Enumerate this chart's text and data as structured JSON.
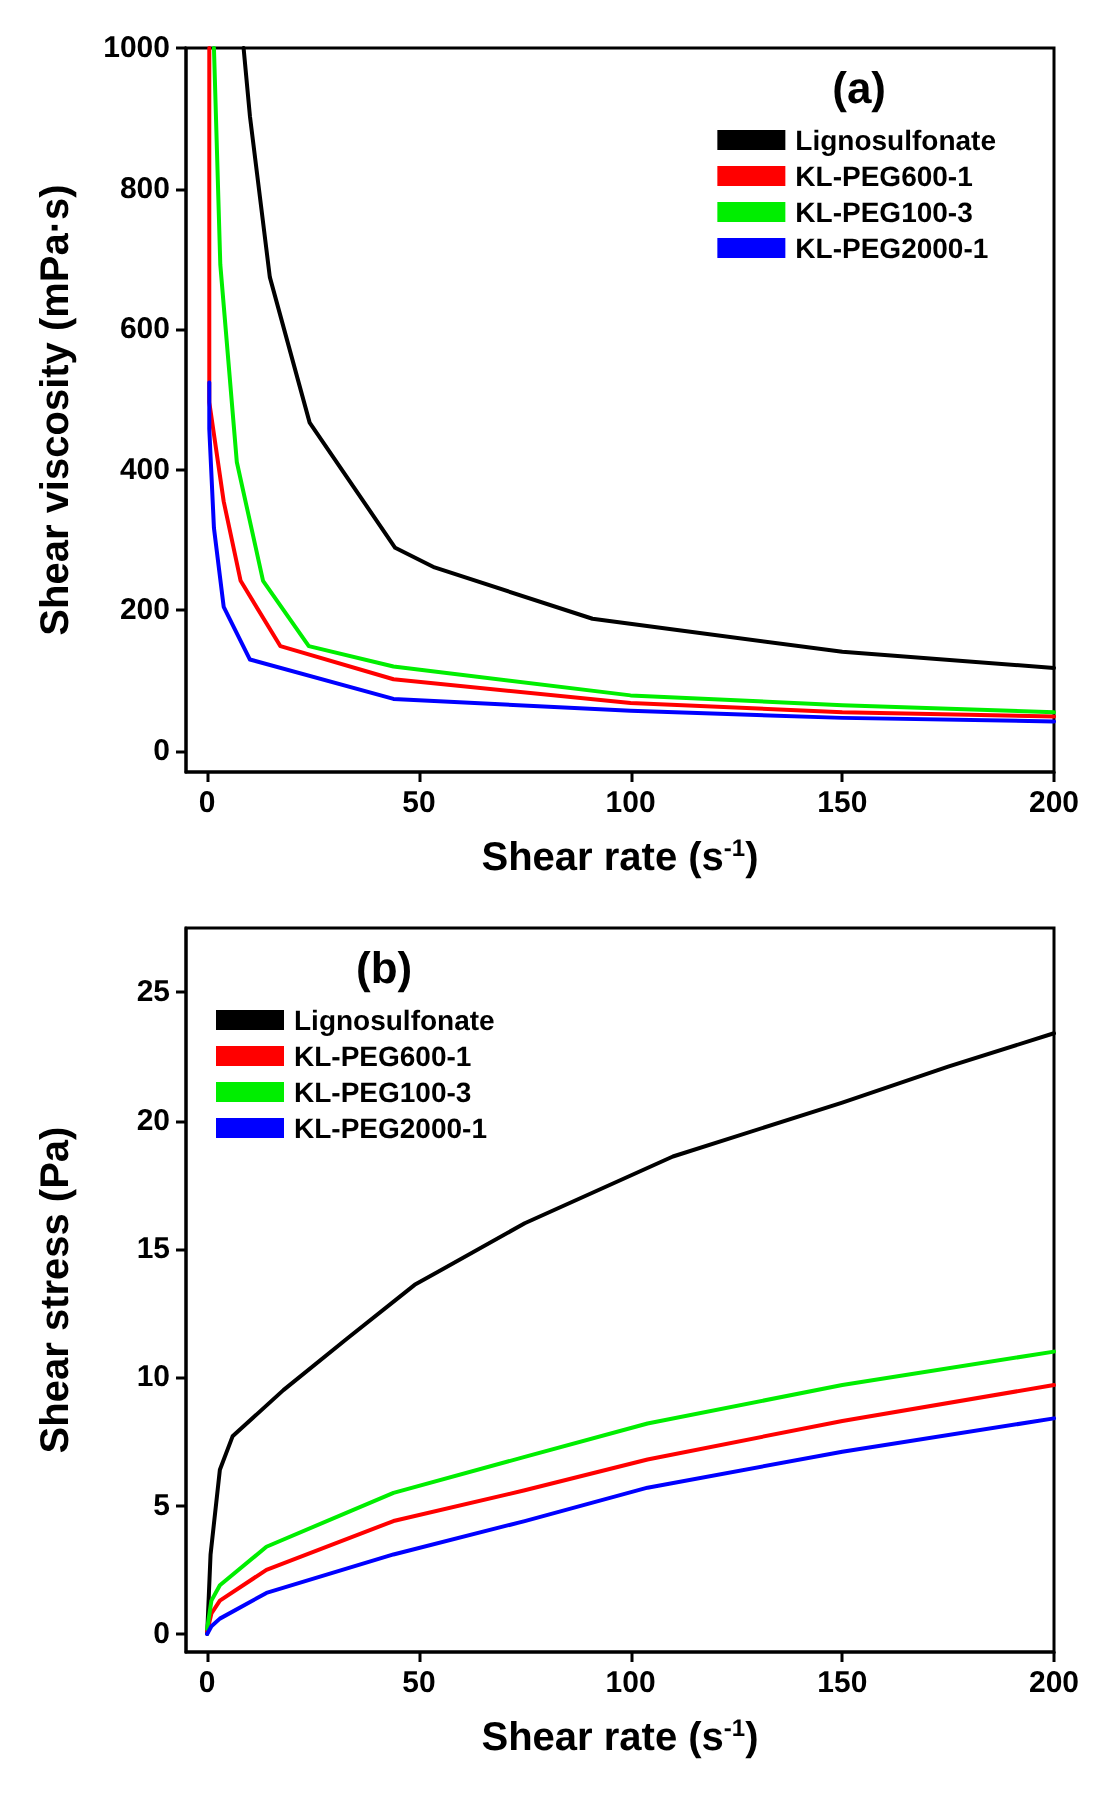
{
  "chart_data": [
    {
      "type": "line",
      "title": "(a)",
      "xlabel": "Shear rate (s$^{-1}$)",
      "ylabel": "Shear viscosity (mPa·s)",
      "xlim": [
        -5,
        200
      ],
      "ylim": [
        -30,
        1000
      ],
      "xticks": [
        0,
        50,
        100,
        150,
        200
      ],
      "yticks": [
        0,
        200,
        400,
        600,
        800,
        1000
      ],
      "legend": "top right",
      "grid": false,
      "series": [
        {
          "name": "Lignosulfonate",
          "color": "#000000",
          "x": [
            8.6,
            10.1,
            14.8,
            24.2,
            44.4,
            53.7,
            91,
            111,
            150,
            200
          ],
          "values": [
            1000,
            903,
            674,
            467,
            289,
            261,
            188,
            172,
            141,
            118
          ]
        },
        {
          "name": "KL-PEG600-1",
          "color": "#ff0000",
          "x": [
            0.5,
            0.5,
            3.9,
            7.9,
            17.3,
            44,
            100,
            150,
            200
          ],
          "values": [
            1000,
            496,
            355,
            242,
            149,
            102,
            68,
            55,
            49
          ]
        },
        {
          "name": "KL-PEG100-3",
          "color": "#00ee00",
          "x": [
            1.6,
            3.1,
            7,
            13.2,
            24,
            44,
            100,
            150,
            200
          ],
          "values": [
            1000,
            692,
            411,
            242,
            149,
            120,
            79,
            65,
            55
          ]
        },
        {
          "name": "KL-PEG2000-1",
          "color": "#0000ff",
          "x": [
            0.5,
            0.5,
            1.6,
            3.9,
            10.1,
            44,
            100,
            150,
            200
          ],
          "values": [
            524,
            458,
            317,
            205,
            130,
            74,
            57,
            47,
            42
          ]
        }
      ]
    },
    {
      "type": "line",
      "title": "(b)",
      "xlabel": "Shear rate (s$^{-1}$)",
      "ylabel": "Shear stress (Pa)",
      "xlim": [
        -5,
        200
      ],
      "ylim": [
        -0.7,
        27.5
      ],
      "xticks": [
        0,
        50,
        100,
        150,
        200
      ],
      "yticks": [
        0,
        5,
        10,
        15,
        20,
        25
      ],
      "legend": "top left",
      "grid": false,
      "series": [
        {
          "name": "Lignosulfonate",
          "color": "#000000",
          "x": [
            0,
            0.8,
            3,
            6,
            18,
            33,
            49,
            75,
            110,
            150,
            175,
            200
          ],
          "values": [
            0,
            3.1,
            6.4,
            7.7,
            9.5,
            11.5,
            13.6,
            16,
            18.6,
            20.7,
            22.1,
            23.4
          ]
        },
        {
          "name": "KL-PEG600-1",
          "color": "#ff0000",
          "x": [
            0,
            1,
            3,
            14,
            44,
            75,
            104,
            150,
            200
          ],
          "values": [
            0.1,
            0.8,
            1.3,
            2.5,
            4.4,
            5.6,
            6.8,
            8.3,
            9.7
          ]
        },
        {
          "name": "KL-PEG100-3",
          "color": "#00ee00",
          "x": [
            0,
            1,
            3,
            14,
            44,
            75,
            104,
            150,
            200
          ],
          "values": [
            0.2,
            1.3,
            1.9,
            3.4,
            5.5,
            6.9,
            8.2,
            9.7,
            11
          ]
        },
        {
          "name": "KL-PEG2000-1",
          "color": "#0000ff",
          "x": [
            0,
            1,
            3,
            14,
            44,
            75,
            104,
            150,
            200
          ],
          "values": [
            0,
            0.3,
            0.6,
            1.6,
            3.1,
            4.4,
            5.7,
            7.1,
            8.4
          ]
        }
      ]
    }
  ]
}
